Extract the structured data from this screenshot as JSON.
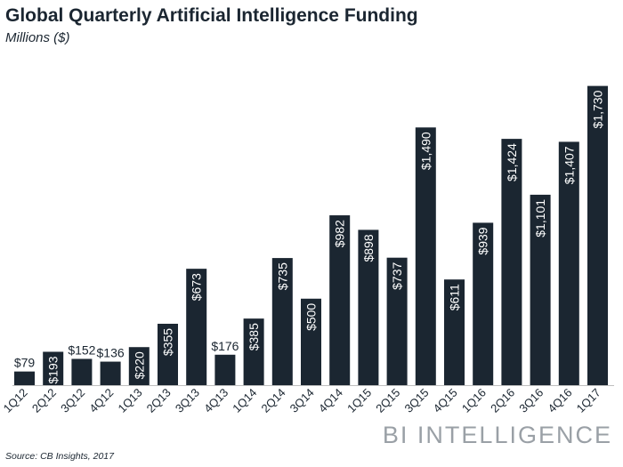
{
  "header": {
    "title": "Global Quarterly Artificial Intelligence Funding",
    "subtitle": "Millions ($)"
  },
  "footer": {
    "source": "Source: CB Insights, 2017",
    "brand": "BI INTELLIGENCE"
  },
  "colors": {
    "bar": "#1b2631",
    "label_inside": "#ffffff",
    "label_outside": "#1b2631",
    "axis": "#bfbfbf",
    "brand": "#9aa0a6"
  },
  "chart_data": {
    "type": "bar",
    "title": "Global Quarterly Artificial Intelligence Funding",
    "subtitle": "Millions ($)",
    "xlabel": "",
    "ylabel": "",
    "ylim": [
      0,
      1800
    ],
    "grid": false,
    "categories": [
      "1Q12",
      "2Q12",
      "3Q12",
      "4Q12",
      "1Q13",
      "2Q13",
      "3Q13",
      "4Q13",
      "1Q14",
      "2Q14",
      "3Q14",
      "4Q14",
      "1Q15",
      "2Q15",
      "3Q15",
      "4Q15",
      "1Q16",
      "2Q16",
      "3Q16",
      "4Q16",
      "1Q17"
    ],
    "values": [
      79,
      193,
      152,
      136,
      220,
      355,
      673,
      176,
      385,
      735,
      500,
      982,
      898,
      737,
      1490,
      611,
      939,
      1424,
      1101,
      1407,
      1730
    ],
    "labels": [
      "$79",
      "$193",
      "$152",
      "$136",
      "$220",
      "$355",
      "$673",
      "$176",
      "$385",
      "$735",
      "$500",
      "$982",
      "$898",
      "$737",
      "$1,490",
      "$611",
      "$939",
      "$1,424",
      "$1,101",
      "$1,407",
      "$1,730"
    ],
    "label_position": [
      "above",
      "inside",
      "above",
      "above",
      "inside",
      "inside",
      "inside",
      "above",
      "inside",
      "inside",
      "inside",
      "inside",
      "inside",
      "inside",
      "inside",
      "inside",
      "inside",
      "inside",
      "inside",
      "inside",
      "inside"
    ]
  }
}
